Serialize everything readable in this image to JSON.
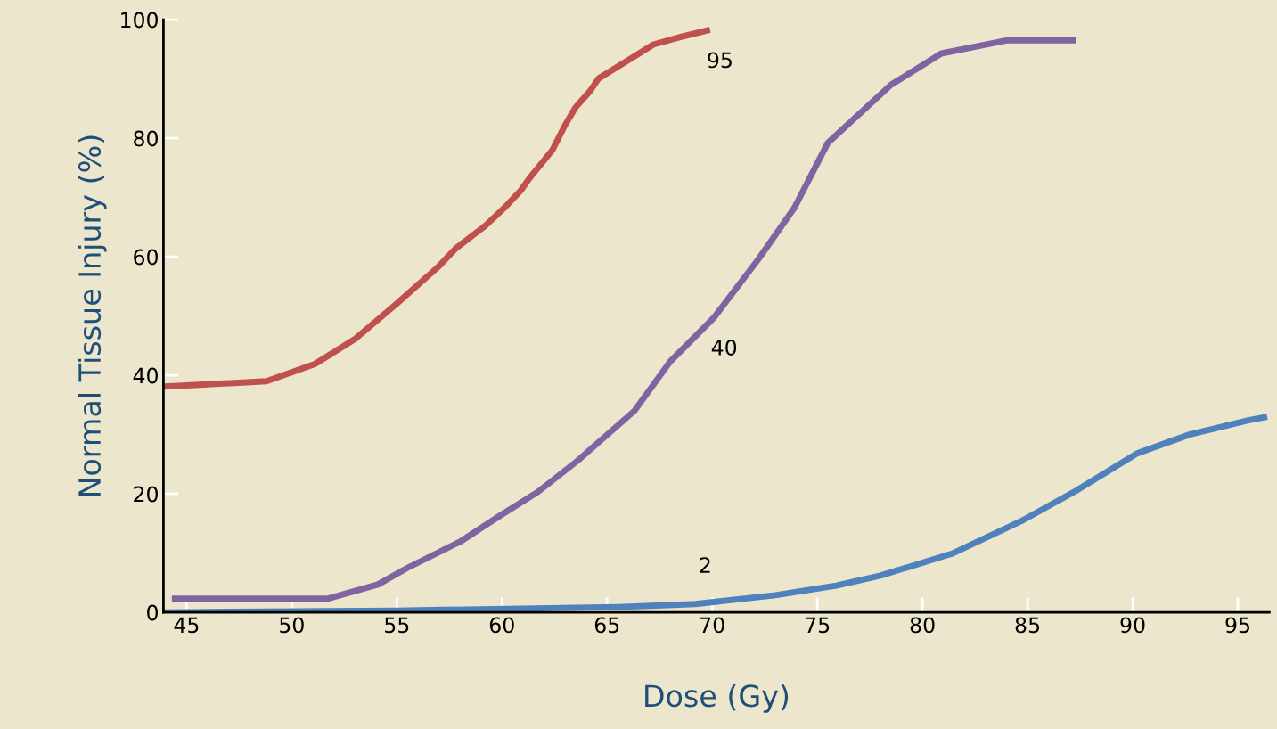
{
  "chart_data": {
    "type": "line",
    "xlabel": "Dose (Gy)",
    "ylabel": "Normal Tissue Injury (%)",
    "xlim": [
      43.9,
      96.5
    ],
    "ylim": [
      0,
      100
    ],
    "xticks": [
      45,
      50,
      55,
      60,
      65,
      70,
      75,
      80,
      85,
      90,
      95
    ],
    "yticks": [
      0,
      20,
      40,
      60,
      80,
      100
    ],
    "grid": false,
    "legend": false,
    "marker": "none",
    "line_style": "solid",
    "series": [
      {
        "name": "95",
        "color": "#c0504d",
        "x": [
          43.9,
          44.6,
          48.8,
          51.1,
          53.0,
          55.0,
          57.0,
          57.8,
          59.2,
          60.1,
          60.9,
          61.3,
          62.4,
          63.0,
          63.5,
          64.2,
          64.6,
          66.3,
          67.2,
          68.4,
          69.9
        ],
        "values": [
          38.1,
          38.2,
          39.0,
          41.9,
          46.1,
          52.1,
          58.4,
          61.4,
          65.2,
          68.2,
          71.2,
          73.2,
          78.0,
          82.2,
          85.2,
          88.0,
          90.1,
          93.8,
          95.8,
          97.0,
          98.3
        ]
      },
      {
        "name": "40",
        "color": "#8064a2",
        "x": [
          44.3,
          51.7,
          54.1,
          55.5,
          58.0,
          59.9,
          61.7,
          63.6,
          66.3,
          68.0,
          70.1,
          72.2,
          73.9,
          75.5,
          78.5,
          80.9,
          84.0,
          87.3
        ],
        "values": [
          2.3,
          2.3,
          4.7,
          7.5,
          11.9,
          16.3,
          20.3,
          25.6,
          34.0,
          42.3,
          49.8,
          59.6,
          68.2,
          79.2,
          89.0,
          94.3,
          96.5,
          96.5
        ]
      },
      {
        "name": "2",
        "color": "#4f81bd",
        "x": [
          43.9,
          55.0,
          65.5,
          69.2,
          73.0,
          75.9,
          78.0,
          81.4,
          84.7,
          87.3,
          90.2,
          92.7,
          95.5,
          96.4
        ],
        "values": [
          0,
          0.3,
          0.9,
          1.4,
          2.9,
          4.5,
          6.2,
          9.9,
          15.4,
          20.5,
          26.8,
          30.0,
          32.4,
          33.0
        ]
      }
    ]
  }
}
